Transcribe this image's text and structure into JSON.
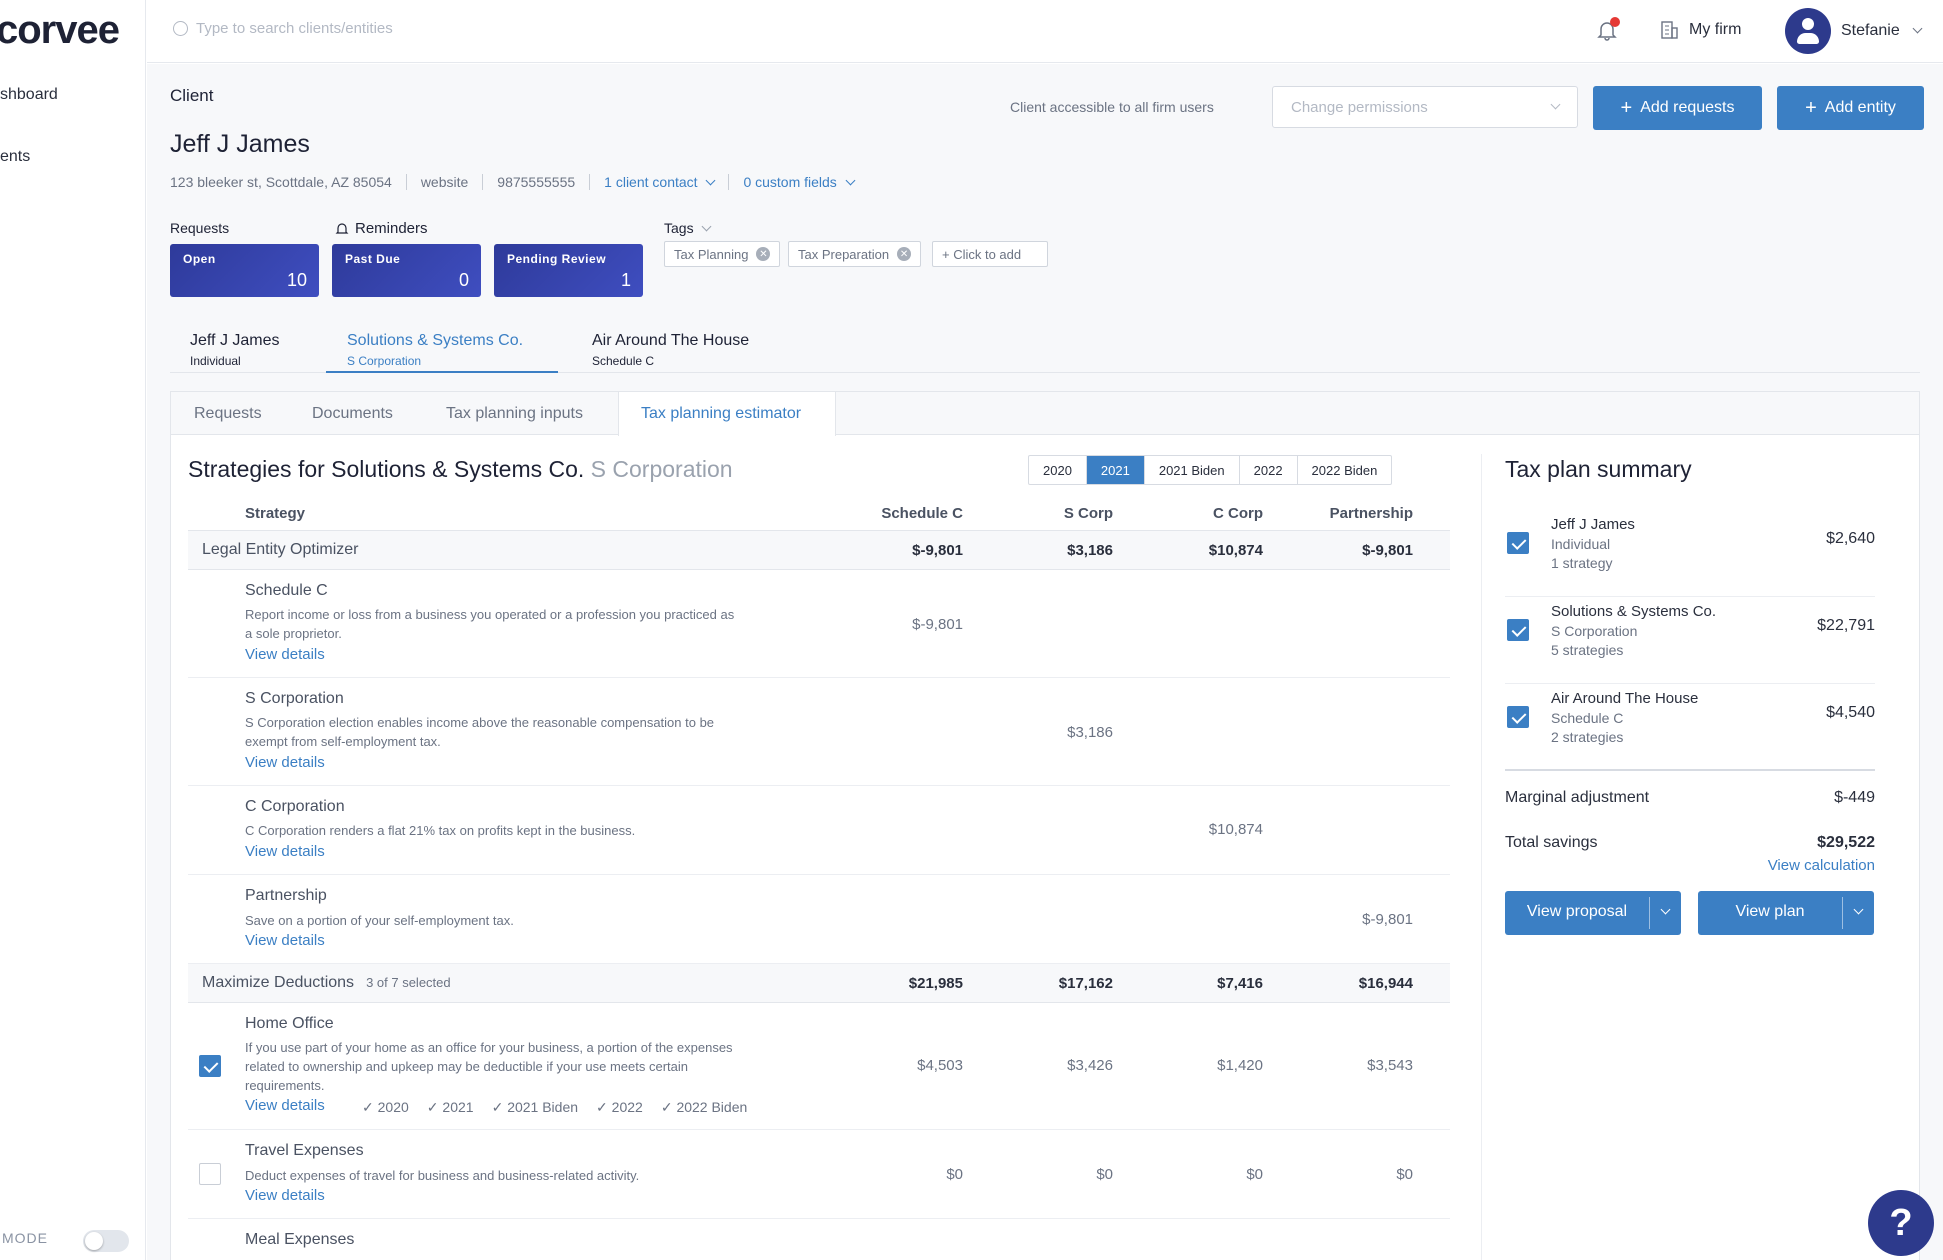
{
  "sidebar": {
    "logo": "corvee",
    "items": [
      {
        "label": "shboard"
      },
      {
        "label": "ents"
      }
    ],
    "mode_label": "MODE"
  },
  "topbar": {
    "search_placeholder": "Type to search clients/entities",
    "my_firm": "My firm",
    "user_name": "Stefanie"
  },
  "client": {
    "label": "Client",
    "name": "Jeff J James",
    "address": "123 bleeker st, Scottdale, AZ 85054",
    "website": "website",
    "phone": "9875555555",
    "contacts": "1 client contact",
    "custom_fields": "0 custom fields",
    "access_text": "Client accessible to all firm users",
    "permissions_placeholder": "Change permissions",
    "add_requests": "Add requests",
    "add_entity": "Add entity"
  },
  "requests": {
    "label": "Requests",
    "reminders_label": "Reminders",
    "boxes": [
      {
        "title": "Open",
        "count": "10"
      },
      {
        "title": "Past Due",
        "count": "0"
      },
      {
        "title": "Pending Review",
        "count": "1"
      }
    ]
  },
  "tags": {
    "label": "Tags",
    "items": [
      "Tax Planning",
      "Tax Preparation"
    ],
    "add_label": "+ Click to add"
  },
  "entities": [
    {
      "name": "Jeff J James",
      "type": "Individual"
    },
    {
      "name": "Solutions & Systems Co.",
      "type": "S Corporation"
    },
    {
      "name": "Air Around The House",
      "type": "Schedule C"
    }
  ],
  "subtabs": [
    "Requests",
    "Documents",
    "Tax planning inputs",
    "Tax planning estimator"
  ],
  "strategies": {
    "title": "Strategies for Solutions & Systems Co.",
    "title_type": "S Corporation",
    "years": [
      "2020",
      "2021",
      "2021 Biden",
      "2022",
      "2022 Biden"
    ],
    "selected_year": "2021",
    "columns": [
      "Strategy",
      "Schedule C",
      "S Corp",
      "C Corp",
      "Partnership"
    ],
    "groups": [
      {
        "name": "Legal Entity Optimizer",
        "selected": "",
        "totals": [
          "$-9,801",
          "$3,186",
          "$10,874",
          "$-9,801"
        ]
      },
      {
        "name": "Maximize Deductions",
        "selected": "3 of 7 selected",
        "totals": [
          "$21,985",
          "$17,162",
          "$7,416",
          "$16,944"
        ]
      }
    ],
    "rows": [
      {
        "title": "Schedule C",
        "desc1": "Report income or loss from a business you operated or a profession you practiced as",
        "desc2": "a sole proprietor.",
        "values": [
          "$-9,801",
          "",
          "",
          ""
        ]
      },
      {
        "title": "S Corporation",
        "desc1": "S Corporation election enables income above the reasonable compensation to be",
        "desc2": "exempt from self-employment tax.",
        "values": [
          "",
          "$3,186",
          "",
          ""
        ]
      },
      {
        "title": "C Corporation",
        "desc1": "C Corporation renders a flat 21% tax on profits kept in the business.",
        "desc2": "",
        "values": [
          "",
          "",
          "$10,874",
          ""
        ]
      },
      {
        "title": "Partnership",
        "desc1": "Save on a portion of your self-employment tax.",
        "desc2": "",
        "values": [
          "",
          "",
          "",
          "$-9,801"
        ]
      },
      {
        "title": "Home Office",
        "desc1": "If you use part of your home as an office for your business, a portion of the expenses",
        "desc2": "related to ownership and upkeep may be deductible if your use meets certain",
        "desc3": "requirements.",
        "values": [
          "$4,503",
          "$3,426",
          "$1,420",
          "$3,543"
        ],
        "years": [
          "2020",
          "2021",
          "2021 Biden",
          "2022",
          "2022 Biden"
        ]
      },
      {
        "title": "Travel Expenses",
        "desc1": "Deduct expenses of travel for business and business-related activity.",
        "desc2": "",
        "values": [
          "$0",
          "$0",
          "$0",
          "$0"
        ]
      },
      {
        "title": "Meal Expenses"
      }
    ],
    "view_details": "View details"
  },
  "summary": {
    "title": "Tax plan summary",
    "entities": [
      {
        "name": "Jeff J James",
        "type": "Individual",
        "strategies": "1 strategy",
        "amount": "$2,640"
      },
      {
        "name": "Solutions & Systems Co.",
        "type": "S Corporation",
        "strategies": "5 strategies",
        "amount": "$22,791"
      },
      {
        "name": "Air Around The House",
        "type": "Schedule C",
        "strategies": "2 strategies",
        "amount": "$4,540"
      }
    ],
    "marginal_label": "Marginal adjustment",
    "marginal_value": "$-449",
    "total_label": "Total savings",
    "total_value": "$29,522",
    "view_calculation": "View calculation",
    "view_proposal": "View proposal",
    "view_plan": "View plan"
  },
  "help": "?",
  "colors": {
    "accent": "#3b7fc4",
    "navy": "#2d3a8c"
  }
}
